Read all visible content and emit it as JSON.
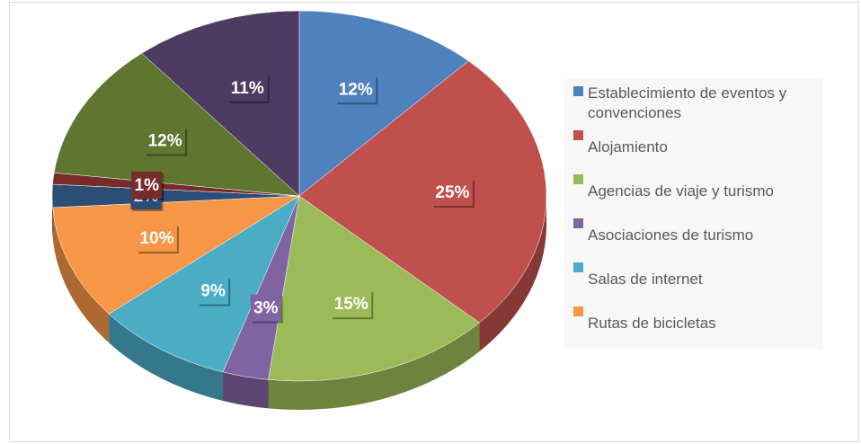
{
  "chart_data": {
    "type": "pie",
    "categories": [
      "Establecimiento de eventos y convenciones",
      "Alojamiento",
      "Agencias de viaje y turismo",
      "Asociaciones de turismo",
      "Salas de internet",
      "Rutas de bicicletas",
      null,
      null,
      null,
      null
    ],
    "values": [
      12,
      25,
      15,
      3,
      9,
      10,
      2,
      1,
      12,
      11
    ],
    "value_labels": [
      "12%",
      "25%",
      "15%",
      "3%",
      "9%",
      "10%",
      "2%",
      "1%",
      "12%",
      "11%"
    ],
    "colors": [
      "#4f81bd",
      "#c0504d",
      "#9bbb59",
      "#8064a2",
      "#4bacc6",
      "#f79646",
      "#2c4d75",
      "#772c2a",
      "#5f7530",
      "#4d3b62"
    ],
    "legend": "right"
  }
}
